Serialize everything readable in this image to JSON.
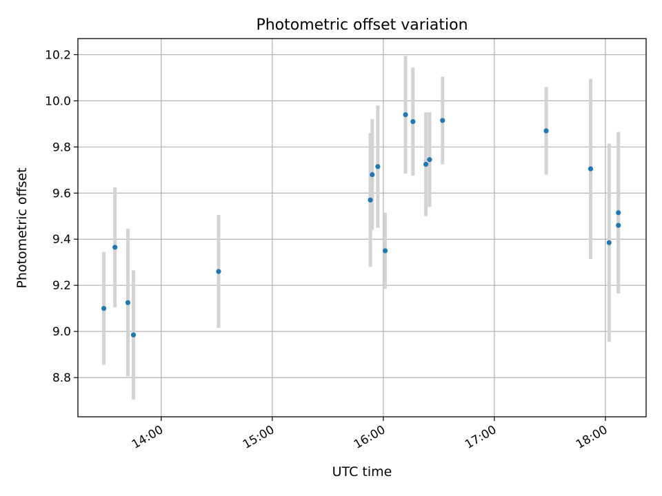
{
  "chart_data": {
    "type": "scatter",
    "title": "Photometric offset variation",
    "xlabel": "UTC time",
    "ylabel": "Photometric offset",
    "x_unit": "hours UTC",
    "xlim": [
      "13:15",
      "18:22"
    ],
    "ylim": [
      8.63,
      10.27
    ],
    "grid": true,
    "legend": "none",
    "x_ticks": [
      {
        "label": "14:00",
        "value": "14:00"
      },
      {
        "label": "15:00",
        "value": "15:00"
      },
      {
        "label": "16:00",
        "value": "16:00"
      },
      {
        "label": "17:00",
        "value": "17:00"
      },
      {
        "label": "18:00",
        "value": "18:00"
      }
    ],
    "y_ticks": [
      {
        "label": "8.8",
        "value": 8.8
      },
      {
        "label": "9.0",
        "value": 9.0
      },
      {
        "label": "9.2",
        "value": 9.2
      },
      {
        "label": "9.4",
        "value": 9.4
      },
      {
        "label": "9.6",
        "value": 9.6
      },
      {
        "label": "9.8",
        "value": 9.8
      },
      {
        "label": "10.0",
        "value": 10.0
      },
      {
        "label": "10.2",
        "value": 10.2
      }
    ],
    "series": [
      {
        "marker_color": "#1f77b4",
        "errorbar_color": "#d3d3d3",
        "points": [
          {
            "x": "13:29",
            "y": 9.1,
            "err": 0.245
          },
          {
            "x": "13:35",
            "y": 9.365,
            "err": 0.26
          },
          {
            "x": "13:42",
            "y": 9.125,
            "err": 0.32
          },
          {
            "x": "13:45",
            "y": 8.985,
            "err": 0.28
          },
          {
            "x": "14:31",
            "y": 9.26,
            "err": 0.245
          },
          {
            "x": "15:53",
            "y": 9.57,
            "err": 0.29
          },
          {
            "x": "15:54",
            "y": 9.68,
            "err": 0.24
          },
          {
            "x": "15:57",
            "y": 9.715,
            "err": 0.265
          },
          {
            "x": "16:01",
            "y": 9.35,
            "err": 0.165
          },
          {
            "x": "16:12",
            "y": 9.94,
            "err": 0.255
          },
          {
            "x": "16:16",
            "y": 9.91,
            "err": 0.235
          },
          {
            "x": "16:23",
            "y": 9.725,
            "err": 0.225
          },
          {
            "x": "16:25",
            "y": 9.745,
            "err": 0.205
          },
          {
            "x": "16:32",
            "y": 9.915,
            "err": 0.19
          },
          {
            "x": "17:28",
            "y": 9.87,
            "err": 0.19
          },
          {
            "x": "17:52",
            "y": 9.705,
            "err": 0.39
          },
          {
            "x": "18:02",
            "y": 9.385,
            "err": 0.43
          },
          {
            "x": "18:07",
            "y": 9.515,
            "err": 0.35
          },
          {
            "x": "18:07",
            "y": 9.46,
            "err": 0.295
          }
        ]
      }
    ]
  }
}
